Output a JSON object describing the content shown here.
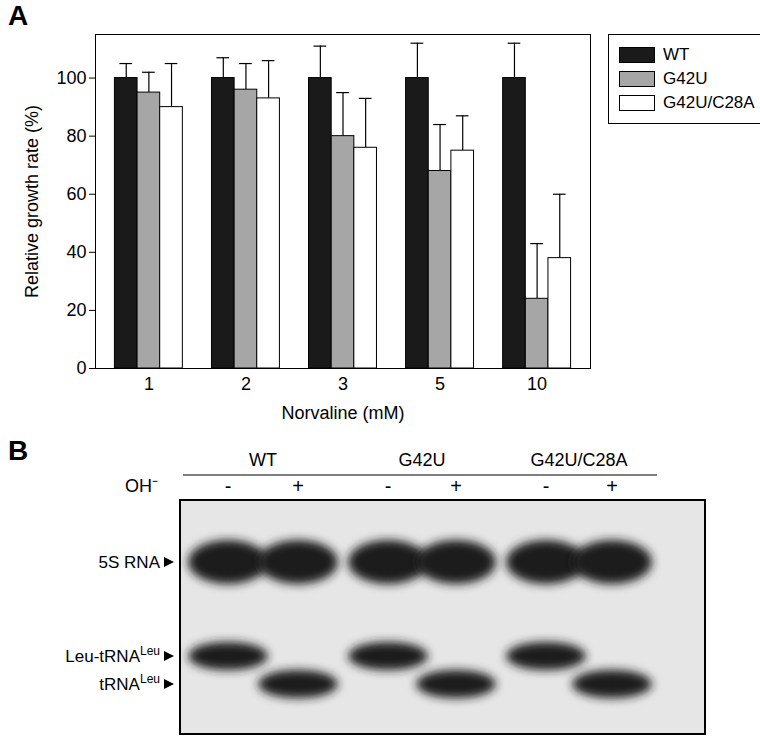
{
  "chart_data": {
    "type": "bar",
    "annotations": [
      "A"
    ],
    "categories": [
      "1",
      "2",
      "3",
      "5",
      "10"
    ],
    "x_label": "Norvaline (mM)",
    "y_label": "Relative growth rate (%)",
    "ylim": [
      0,
      115
    ],
    "yticks": [
      0,
      20,
      40,
      60,
      80,
      100
    ],
    "legend": "top-right",
    "series": [
      {
        "name": "WT",
        "color": "#1a1a1a",
        "values": [
          100,
          100,
          100,
          100,
          100
        ],
        "errors": [
          5,
          7,
          11,
          12,
          12
        ]
      },
      {
        "name": "G42U",
        "color": "#a6a6a6",
        "values": [
          95,
          96,
          80,
          68,
          24
        ],
        "errors": [
          7,
          9,
          15,
          16,
          19
        ]
      },
      {
        "name": "G42U/C28A",
        "color": "#ffffff",
        "values": [
          90,
          93,
          76,
          75,
          38
        ],
        "errors": [
          15,
          13,
          17,
          12,
          22
        ]
      }
    ]
  },
  "panel_b": {
    "label": "B",
    "treatment": "OH⁻",
    "bands": [
      {
        "text": "5S RNA"
      },
      {
        "text": "Leu-tRNA",
        "sup": "Leu"
      },
      {
        "text": "tRNA",
        "sup": "Leu"
      }
    ],
    "groups": [
      {
        "name": "WT",
        "lanes": [
          {
            "sign": "-",
            "bands": [
              0,
              1
            ]
          },
          {
            "sign": "+",
            "bands": [
              0,
              2
            ]
          }
        ]
      },
      {
        "name": "G42U",
        "lanes": [
          {
            "sign": "-",
            "bands": [
              0,
              1
            ]
          },
          {
            "sign": "+",
            "bands": [
              0,
              2
            ]
          }
        ]
      },
      {
        "name": "G42U/C28A",
        "lanes": [
          {
            "sign": "-",
            "bands": [
              0,
              1
            ]
          },
          {
            "sign": "+",
            "bands": [
              0,
              2
            ]
          }
        ]
      }
    ]
  }
}
